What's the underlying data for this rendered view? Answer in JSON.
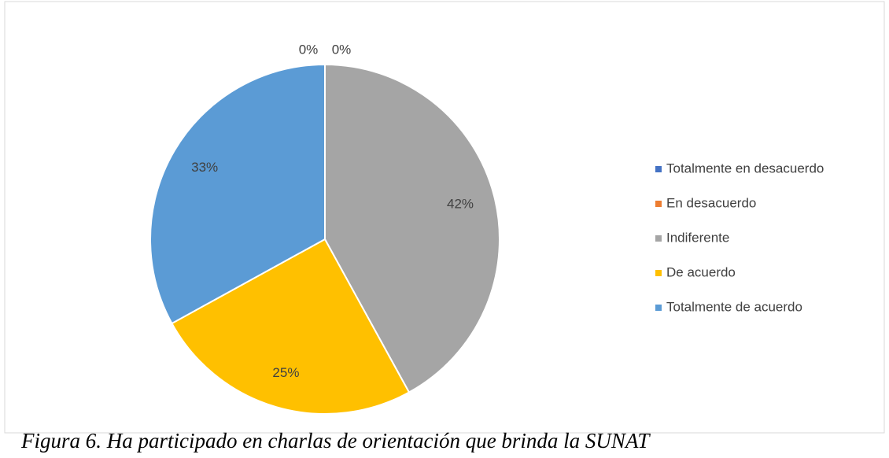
{
  "chart_data": {
    "type": "pie",
    "categories": [
      "Totalmente en desacuerdo",
      "En desacuerdo",
      "Indiferente",
      "De acuerdo",
      "Totalmente de acuerdo"
    ],
    "values": [
      0,
      0,
      42,
      25,
      33
    ],
    "value_labels": [
      "0%",
      "0%",
      "42%",
      "25%",
      "33%"
    ],
    "colors": [
      "#4472c4",
      "#ed7d31",
      "#a5a5a5",
      "#ffc000",
      "#5b9bd5"
    ],
    "legend": "right",
    "caption": "Figura 6. Ha participado en charlas de orientación que brinda la SUNAT"
  }
}
